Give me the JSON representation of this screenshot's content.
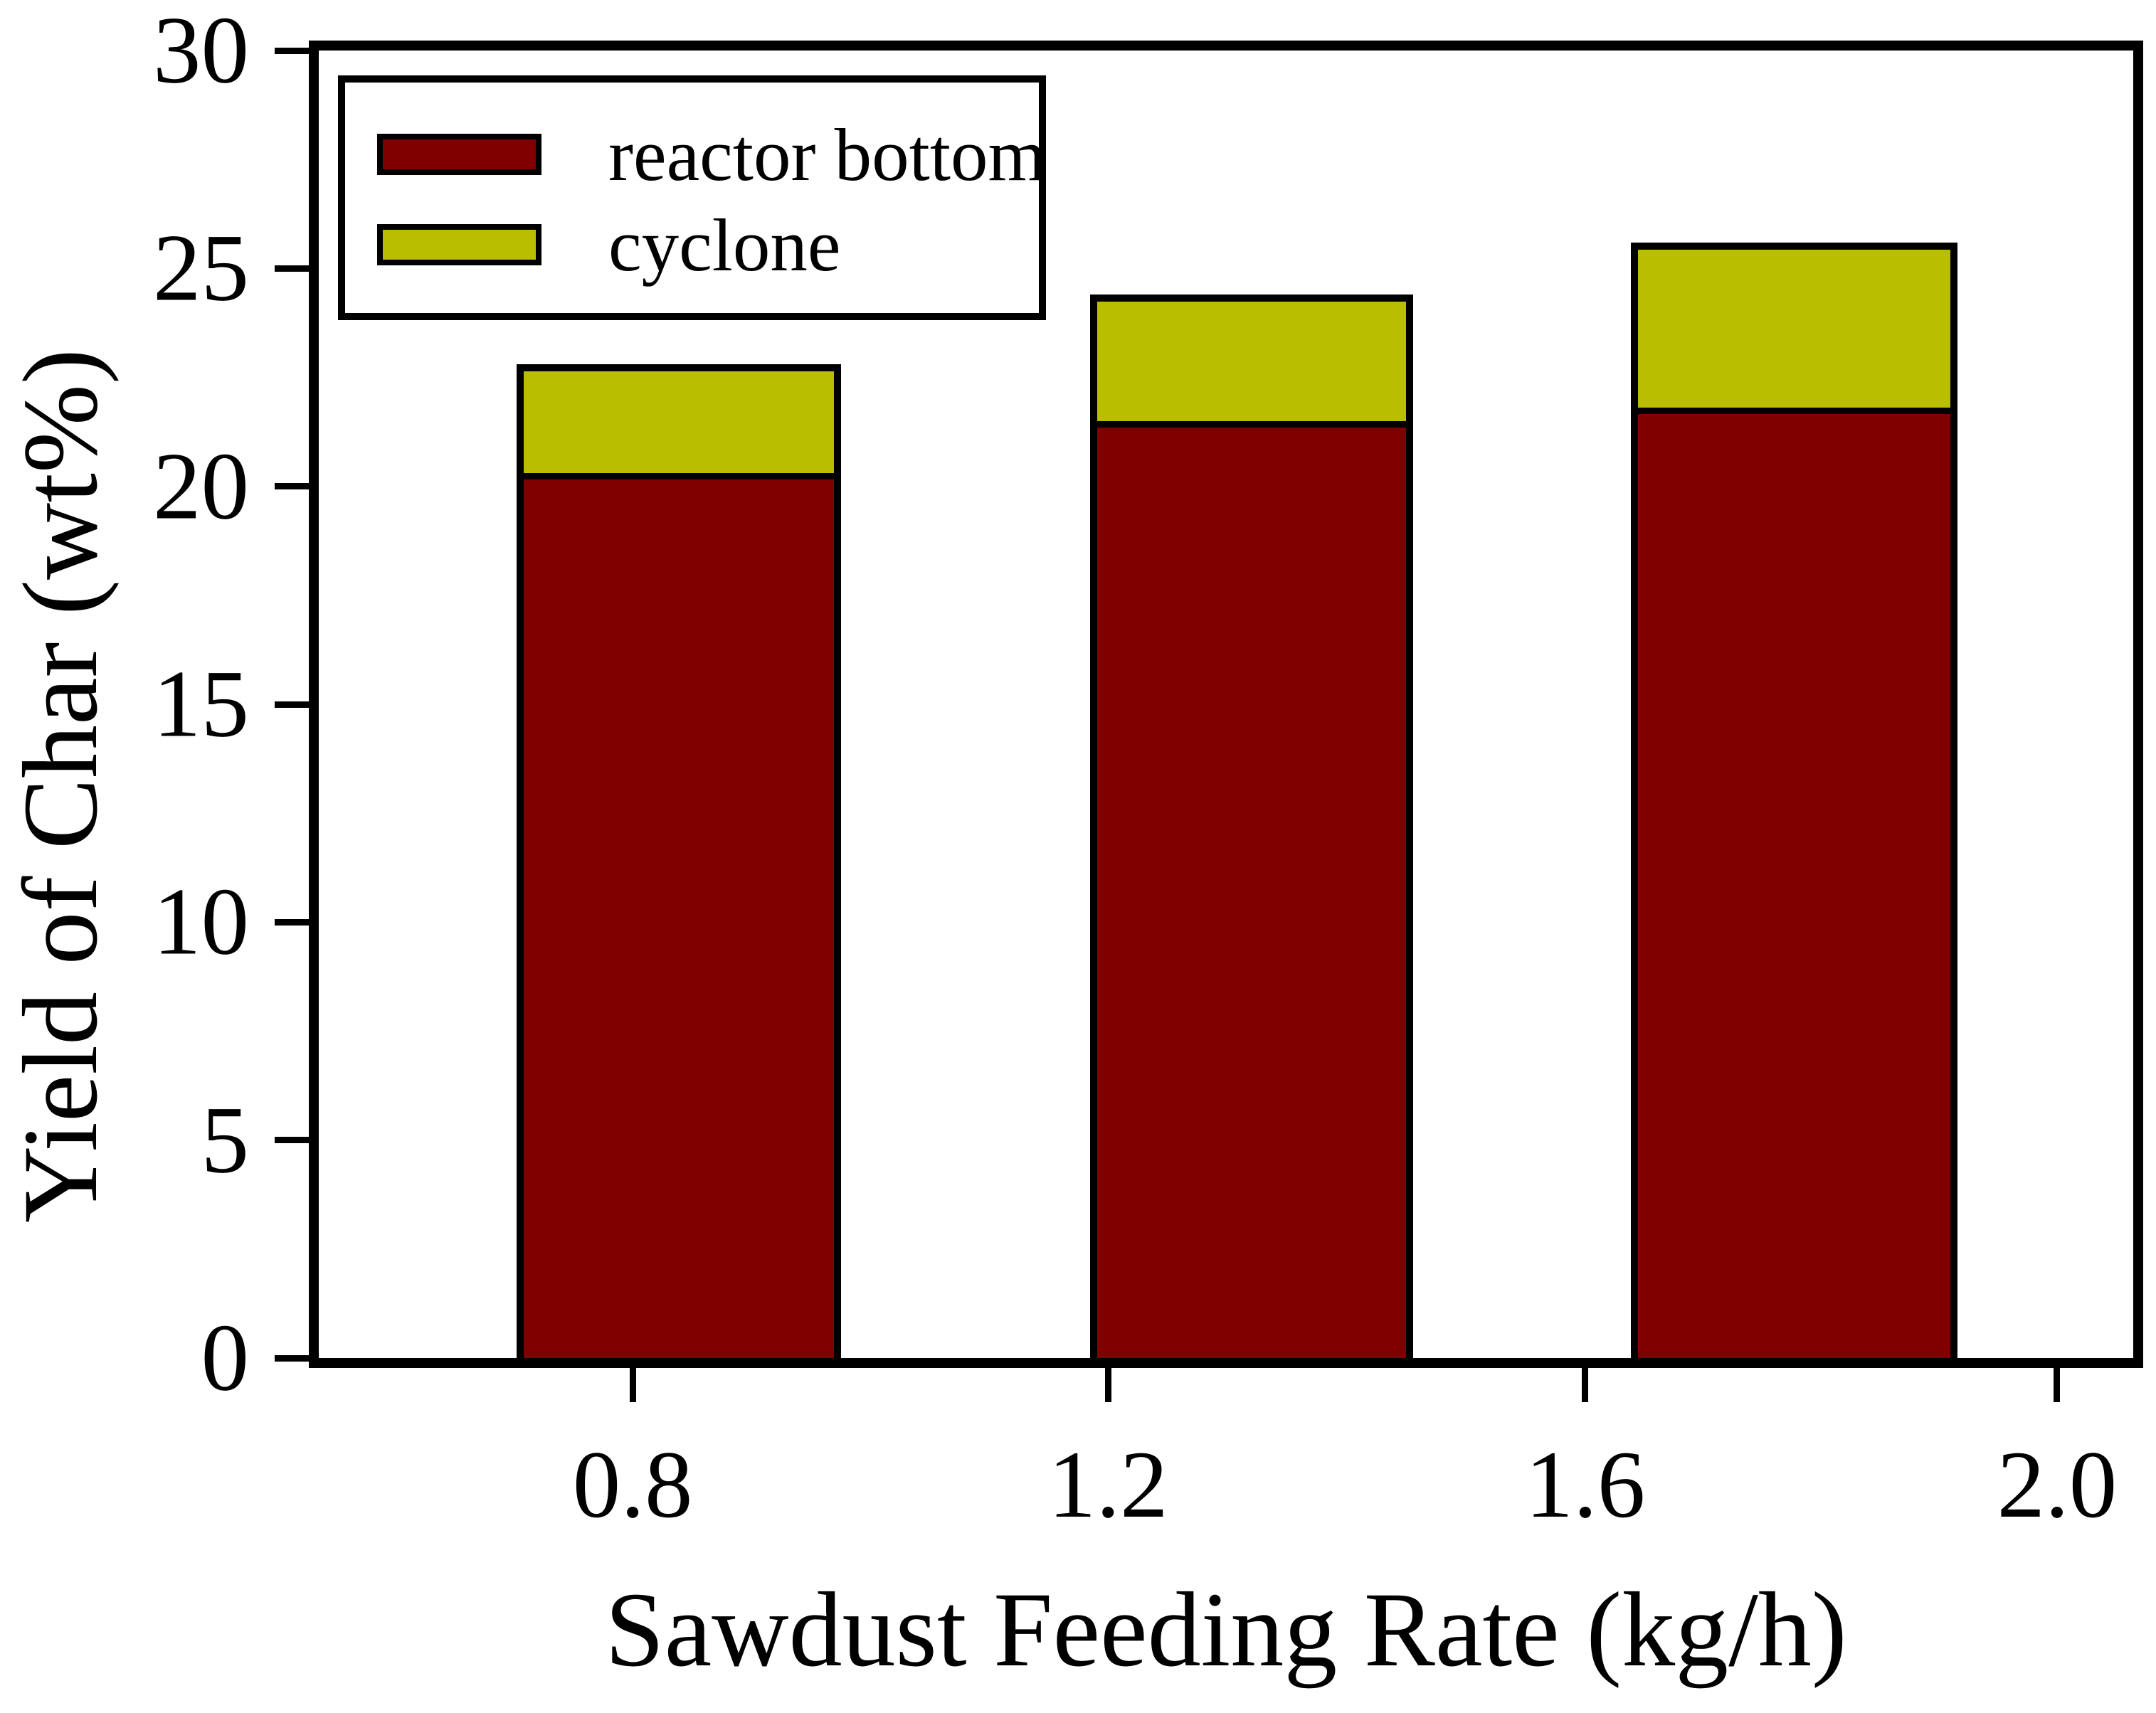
{
  "chart_data": {
    "type": "bar",
    "stacked": true,
    "title": "",
    "xlabel": "Sawdust Feeding Rate (kg/h)",
    "ylabel": "Yield of Char (wt%)",
    "ylim": [
      0,
      30
    ],
    "y_ticks": [
      "0",
      "5",
      "10",
      "15",
      "20",
      "25",
      "30"
    ],
    "x_ticks": [
      {
        "label": "0.8",
        "pos_pct": 17.3
      },
      {
        "label": "1.2",
        "pos_pct": 43.5
      },
      {
        "label": "1.6",
        "pos_pct": 69.8
      },
      {
        "label": "2.0",
        "pos_pct": 95.8
      }
    ],
    "categories": [
      "0.8",
      "1.2",
      "1.6"
    ],
    "series": [
      {
        "name": "reactor bottom",
        "color": "#800000",
        "values": [
          20.3,
          21.5,
          21.8
        ]
      },
      {
        "name": "cyclone",
        "color": "#b9bf00",
        "values": [
          2.5,
          2.9,
          3.8
        ]
      }
    ],
    "totals": [
      22.8,
      24.4,
      25.6
    ],
    "bars_layout_pct": [
      {
        "left": 10.9,
        "width": 17.9
      },
      {
        "left": 42.5,
        "width": 17.8
      },
      {
        "left": 72.3,
        "width": 18.0
      }
    ],
    "legend": {
      "position": "top-left",
      "border": true
    },
    "grid": "off",
    "colors": {
      "frame": "#000000",
      "background": "#ffffff"
    }
  }
}
